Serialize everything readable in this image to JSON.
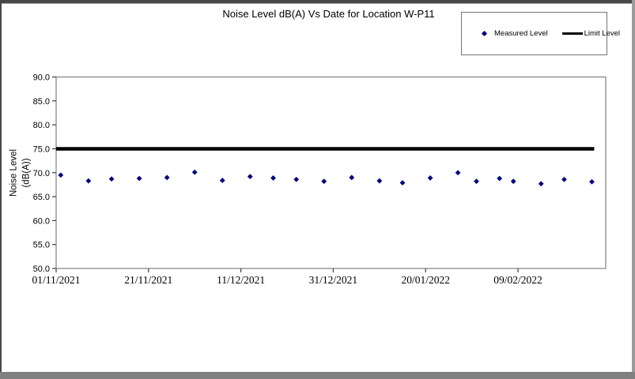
{
  "window": {
    "background": "#ffffff",
    "bottom_bar_color": "#808080"
  },
  "chart_data": {
    "type": "scatter",
    "title": "Noise Level dB(A) Vs Date for Location W-P11",
    "ylabel_line1": "Noise Level",
    "ylabel_line2": "(dB(A))",
    "xlabel": "",
    "ylim": [
      50,
      90
    ],
    "grid": false,
    "legend_position": "top-right-outside",
    "y_tick_labels": [
      "90.0",
      "85.0",
      "80.0",
      "75.0",
      "70.0",
      "65.0",
      "60.0",
      "55.0",
      "50.0"
    ],
    "y_tick_values": [
      90,
      85,
      80,
      75,
      70,
      65,
      60,
      55,
      50
    ],
    "x_tick_labels": [
      "01/11/2021",
      "21/11/2021",
      "11/12/2021",
      "31/12/2021",
      "20/01/2022",
      "09/02/2022"
    ],
    "x_tick_days": [
      0,
      20,
      40,
      60,
      80,
      100
    ],
    "x_range_days": [
      0,
      119
    ],
    "marker_color": "#000080",
    "limit_color": "#000000",
    "axis_color": "#808080",
    "series": [
      {
        "name": "Measured Level",
        "type": "scatter",
        "marker": "diamond",
        "color": "#000080",
        "points": [
          {
            "date": "02/11/2021",
            "day": 1,
            "value": 69.5
          },
          {
            "date": "08/11/2021",
            "day": 7,
            "value": 68.3
          },
          {
            "date": "13/11/2021",
            "day": 12,
            "value": 68.7
          },
          {
            "date": "19/11/2021",
            "day": 18,
            "value": 68.8
          },
          {
            "date": "25/11/2021",
            "day": 24,
            "value": 69.0
          },
          {
            "date": "01/12/2021",
            "day": 30,
            "value": 70.1
          },
          {
            "date": "07/12/2021",
            "day": 36,
            "value": 68.4
          },
          {
            "date": "13/12/2021",
            "day": 42,
            "value": 69.2
          },
          {
            "date": "18/12/2021",
            "day": 47,
            "value": 68.9
          },
          {
            "date": "23/12/2021",
            "day": 52,
            "value": 68.6
          },
          {
            "date": "29/12/2021",
            "day": 58,
            "value": 68.2
          },
          {
            "date": "04/01/2022",
            "day": 64,
            "value": 69.0
          },
          {
            "date": "10/01/2022",
            "day": 70,
            "value": 68.3
          },
          {
            "date": "15/01/2022",
            "day": 75,
            "value": 67.9
          },
          {
            "date": "21/01/2022",
            "day": 81,
            "value": 68.9
          },
          {
            "date": "27/01/2022",
            "day": 87,
            "value": 70.0
          },
          {
            "date": "31/01/2022",
            "day": 91,
            "value": 68.2
          },
          {
            "date": "05/02/2022",
            "day": 96,
            "value": 68.8
          },
          {
            "date": "08/02/2022",
            "day": 99,
            "value": 68.2
          },
          {
            "date": "14/02/2022",
            "day": 105,
            "value": 67.7
          },
          {
            "date": "19/02/2022",
            "day": 110,
            "value": 68.6
          },
          {
            "date": "25/02/2022",
            "day": 116,
            "value": 68.1
          }
        ]
      },
      {
        "name": "Limit Level",
        "type": "line",
        "color": "#000000",
        "value": 75,
        "span_days": [
          0,
          116.5
        ]
      }
    ]
  }
}
